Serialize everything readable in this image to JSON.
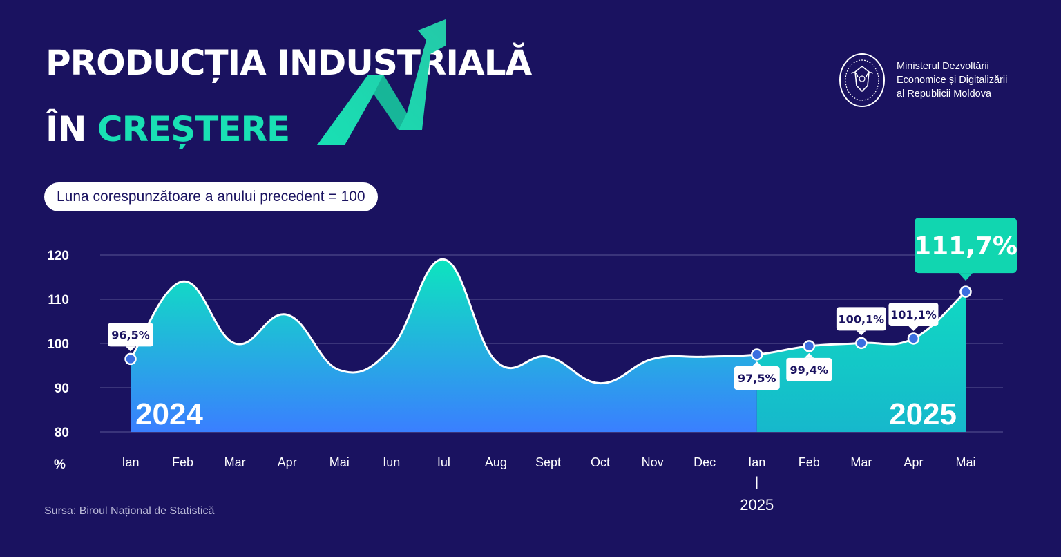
{
  "header": {
    "title_line1": "PRODUCȚIA INDUSTRIALĂ",
    "title_line2_prefix": "ÎN",
    "title_line2_accent": "CREȘTERE",
    "arrow_icon": "trend-up-arrow-icon"
  },
  "ministry": {
    "emblem_icon": "government-seal-icon",
    "line1": "Ministerul Dezvoltării",
    "line2": "Economice și Digitalizării",
    "line3": "al Republicii Moldova"
  },
  "base_note": "Luna corespunzătoare a anului precedent = 100",
  "source": "Sursa: Biroul Național de Statistică",
  "colors": {
    "background": "#1a1260",
    "accent_green": "#19e0b4",
    "area_top": "#0de5be",
    "area_bottom_2024": "#3a7fff",
    "area_2025": "#16c4c4",
    "point_fill": "#3b6fe0",
    "highlight_box": "#11d6b0"
  },
  "chart_data": {
    "type": "area",
    "categories": [
      "Ian",
      "Feb",
      "Mar",
      "Apr",
      "Mai",
      "Iun",
      "Iul",
      "Aug",
      "Sept",
      "Oct",
      "Nov",
      "Dec",
      "Ian",
      "Feb",
      "Mar",
      "Apr",
      "Mai"
    ],
    "values": [
      96.5,
      114,
      100,
      106.5,
      94,
      99,
      119,
      96,
      97,
      91,
      96.5,
      97,
      97.5,
      99.4,
      100.1,
      101.1,
      111.7
    ],
    "ylim": [
      80,
      120
    ],
    "y_ticks": [
      120,
      110,
      100,
      90,
      80
    ],
    "y_unit": "%",
    "x_break_label_sep": "|",
    "x_break_label_year": "2025",
    "grid": true,
    "year_labels": [
      "2024",
      "2025"
    ],
    "year_split_index": 12,
    "annotations": [
      {
        "index": 0,
        "label": "96,5%",
        "position": "above"
      },
      {
        "index": 12,
        "label": "97,5%",
        "position": "below"
      },
      {
        "index": 13,
        "label": "99,4%",
        "position": "below"
      },
      {
        "index": 14,
        "label": "100,1%",
        "position": "above"
      },
      {
        "index": 15,
        "label": "101,1%",
        "position": "above"
      },
      {
        "index": 16,
        "label": "111,7%",
        "position": "above",
        "highlight": true
      }
    ]
  }
}
